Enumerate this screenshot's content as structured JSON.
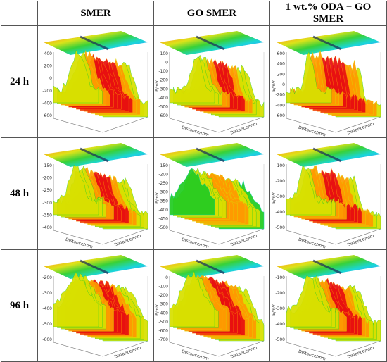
{
  "columns": [
    "SMER",
    "GO SMER",
    "1 wt.% ODA − GO SMER"
  ],
  "rows": [
    "24 h",
    "48 h",
    "96 h"
  ],
  "colors": {
    "scale": [
      "#2a1fc8",
      "#1e90ff",
      "#00d2d2",
      "#22cc22",
      "#d8e000",
      "#ff9a00",
      "#e81010"
    ]
  },
  "panels": [
    [
      {
        "ylabel": "",
        "xlabel": "",
        "dlabel": "",
        "yticks": [
          "400",
          "200",
          "0",
          "-200",
          "-400",
          "-600"
        ]
      },
      {
        "ylabel": "E/mV",
        "xlabel": "Distance/mm",
        "dlabel": "Distance/mm",
        "yticks": [
          "100",
          "0",
          "-100",
          "-200",
          "-300",
          "-400",
          "-500",
          "-600"
        ]
      },
      {
        "ylabel": "E/mV",
        "xlabel": "Distance/mm",
        "dlabel": "Distance/mm",
        "yticks": [
          "600",
          "400",
          "200",
          "0",
          "-200",
          "-400",
          "-600"
        ]
      }
    ],
    [
      {
        "ylabel": "",
        "xlabel": "Distance/mm",
        "dlabel": "Distance/mm",
        "yticks": [
          "-150",
          "-200",
          "-250",
          "-300",
          "-350",
          "-400"
        ]
      },
      {
        "ylabel": "E/mV",
        "xlabel": "Distance/mm",
        "dlabel": "Distance/mm",
        "yticks": [
          "-150",
          "-200",
          "-250",
          "-300",
          "-350",
          "-400",
          "-450",
          "-500"
        ]
      },
      {
        "ylabel": "E/mV",
        "xlabel": "Distance/mm",
        "dlabel": "Distance/mm",
        "yticks": [
          "-100",
          "-200",
          "-300",
          "-400",
          "-500"
        ]
      }
    ],
    [
      {
        "ylabel": "",
        "xlabel": "",
        "dlabel": "Distance/mm",
        "yticks": [
          "-200",
          "-300",
          "-400",
          "-500",
          "-600"
        ]
      },
      {
        "ylabel": "E/mV",
        "xlabel": "Distance/mm",
        "dlabel": "Distance/mm",
        "yticks": [
          "0",
          "-100",
          "-200",
          "-300",
          "-400",
          "-500",
          "-600",
          "-700"
        ]
      },
      {
        "ylabel": "E/mV",
        "xlabel": "Distance/mm",
        "dlabel": "Distance/mm",
        "yticks": [
          "-100",
          "-200",
          "-300",
          "-400",
          "-500"
        ]
      }
    ]
  ]
}
